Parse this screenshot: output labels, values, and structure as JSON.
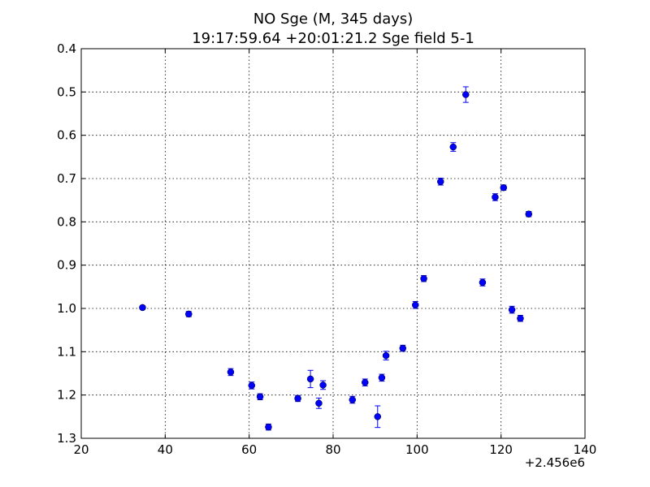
{
  "chart_data": {
    "type": "scatter",
    "title": "NO Sge (M, 345 days)",
    "subtitle": "19:17:59.64 +20:01:21.2 Sge field 5-1",
    "xlabel": "",
    "ylabel": "",
    "x_offset_label": "+2.456e6",
    "xlim": [
      20,
      140
    ],
    "ylim": [
      1.3,
      0.4
    ],
    "y_inverted": true,
    "grid": true,
    "x_ticks": [
      20,
      40,
      60,
      80,
      100,
      120,
      140
    ],
    "x_tick_labels": [
      "20",
      "40",
      "60",
      "80",
      "100",
      "120",
      "140"
    ],
    "y_ticks": [
      0.4,
      0.5,
      0.6,
      0.7,
      0.8,
      0.9,
      1.0,
      1.1,
      1.2,
      1.3
    ],
    "y_tick_labels": [
      "0.4",
      "0.5",
      "0.6",
      "0.7",
      "0.8",
      "0.9",
      "1.0",
      "1.1",
      "1.2",
      "1.3"
    ],
    "marker_color": "#0000ff",
    "error_color": "#0000ff",
    "series": [
      {
        "x": [
          34.6,
          45.6,
          55.6,
          60.6,
          62.6,
          64.6,
          71.6,
          74.6,
          76.6,
          77.6,
          84.6,
          87.6,
          90.6,
          91.6,
          92.6,
          96.6,
          99.6,
          101.6,
          105.6,
          108.6,
          111.6,
          115.6,
          118.6,
          120.6,
          122.6,
          124.6,
          126.6
        ],
        "y": [
          0.998,
          1.013,
          1.147,
          1.178,
          1.204,
          1.274,
          1.208,
          1.163,
          1.219,
          1.177,
          1.211,
          1.171,
          1.25,
          1.16,
          1.109,
          1.092,
          0.992,
          0.931,
          0.707,
          0.627,
          0.506,
          0.94,
          0.743,
          0.721,
          1.003,
          1.023,
          0.782
        ],
        "yerr": [
          0.004,
          0.006,
          0.008,
          0.008,
          0.007,
          0.007,
          0.007,
          0.02,
          0.012,
          0.01,
          0.008,
          0.008,
          0.025,
          0.008,
          0.01,
          0.007,
          0.008,
          0.007,
          0.008,
          0.01,
          0.018,
          0.008,
          0.008,
          0.006,
          0.008,
          0.007,
          0.006
        ]
      }
    ]
  }
}
